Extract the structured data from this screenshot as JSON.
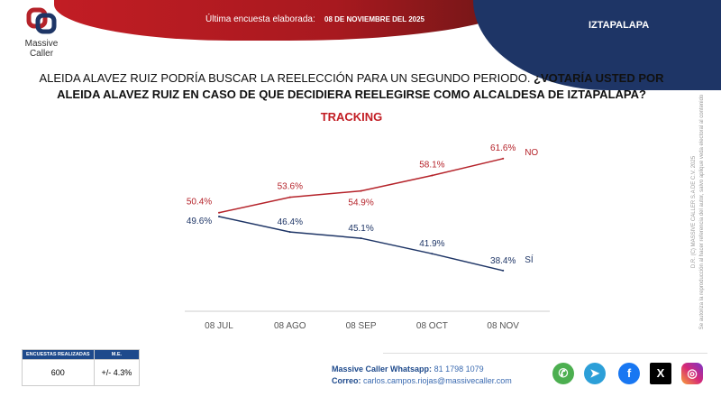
{
  "header": {
    "brand": "Massive Caller",
    "last_survey_label": "Última encuesta elaborada:",
    "last_survey_date": "08 DE NOVIEMBRE DEL 2025",
    "region": "IZTAPALAPA"
  },
  "question": {
    "intro": "ALEIDA ALAVEZ RUIZ PODRÍA BUSCAR LA REELECCIÓN PARA UN SEGUNDO PERIODO.",
    "bold": "¿VOTARÍA USTED POR ALEIDA ALAVEZ RUIZ EN CASO DE QUE DECIDIERA REELEGIRSE COMO ALCALDESA DE IZTAPALAPA?"
  },
  "chart_data": {
    "type": "line",
    "title": "TRACKING",
    "categories": [
      "08 JUL",
      "08 AGO",
      "08 SEP",
      "08 OCT",
      "08 NOV"
    ],
    "series": [
      {
        "name": "NO",
        "values": [
          50.4,
          53.6,
          54.9,
          58.1,
          61.6
        ],
        "labels": [
          "50.4%",
          "53.6%",
          "54.9%",
          "58.1%",
          "61.6%"
        ],
        "color": "#b5232a"
      },
      {
        "name": "SÍ",
        "values": [
          49.6,
          46.4,
          45.1,
          41.9,
          38.4
        ],
        "labels": [
          "49.6%",
          "46.4%",
          "45.1%",
          "41.9%",
          "38.4%"
        ],
        "color": "#1e3566"
      }
    ],
    "grid": false,
    "legend": "inline-end"
  },
  "copyright": {
    "line1": "D.R. (C) MASSIVE CALLER S.A DE C.V. 2025",
    "line2": "Se autoriza la reproducción al hacer referencia del autor, salvo aplique veda electoral al contenido"
  },
  "stats": {
    "h1": "ENCUESTAS REALIZADAS",
    "h2": "M.E.",
    "surveys": "600",
    "margin": "+/- 4.3%"
  },
  "contact": {
    "wa_label": "Massive Caller Whatsapp:",
    "wa": "81 1798 1079",
    "mail_label": "Correo:",
    "mail": "carlos.campos.riojas@massivecaller.com"
  },
  "social": [
    "whatsapp-icon",
    "telegram-icon",
    "facebook-icon",
    "x-icon",
    "instagram-icon"
  ]
}
